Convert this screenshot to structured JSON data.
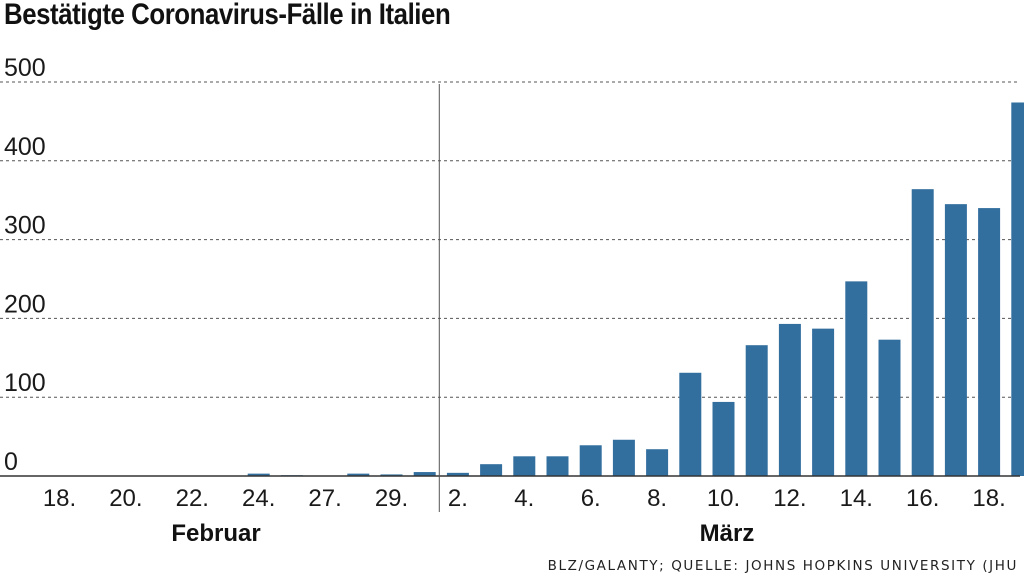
{
  "chart_data": {
    "type": "bar",
    "title": "Bestätigte Coronavirus-Fälle in Italien",
    "source": "BLZ/GALANTY; QUELLE: JOHNS HOPKINS UNIVERSITY (JHU",
    "ylim": [
      0,
      500
    ],
    "yticks": [
      "0",
      "100",
      "200",
      "300",
      "400",
      "500"
    ],
    "grid": true,
    "bar_color": "#336f9e",
    "values": [
      0,
      0,
      0,
      0,
      0,
      0,
      3,
      1,
      0,
      3,
      2,
      5,
      4,
      15,
      25,
      25,
      39,
      46,
      34,
      131,
      94,
      166,
      193,
      187,
      247,
      173,
      364,
      345,
      340,
      474
    ],
    "x_ticks": [
      {
        "label": "18.",
        "index": 0
      },
      {
        "label": "20.",
        "index": 2
      },
      {
        "label": "22.",
        "index": 4
      },
      {
        "label": "24.",
        "index": 6
      },
      {
        "label": "27.",
        "index": 8
      },
      {
        "label": "29.",
        "index": 10
      },
      {
        "label": "2.",
        "index": 12
      },
      {
        "label": "4.",
        "index": 14
      },
      {
        "label": "6.",
        "index": 16
      },
      {
        "label": "8.",
        "index": 18
      },
      {
        "label": "10.",
        "index": 20
      },
      {
        "label": "12.",
        "index": 22
      },
      {
        "label": "14.",
        "index": 24
      },
      {
        "label": "16.",
        "index": 26
      },
      {
        "label": "18.",
        "index": 28
      }
    ],
    "months": [
      "Februar",
      "März"
    ]
  }
}
